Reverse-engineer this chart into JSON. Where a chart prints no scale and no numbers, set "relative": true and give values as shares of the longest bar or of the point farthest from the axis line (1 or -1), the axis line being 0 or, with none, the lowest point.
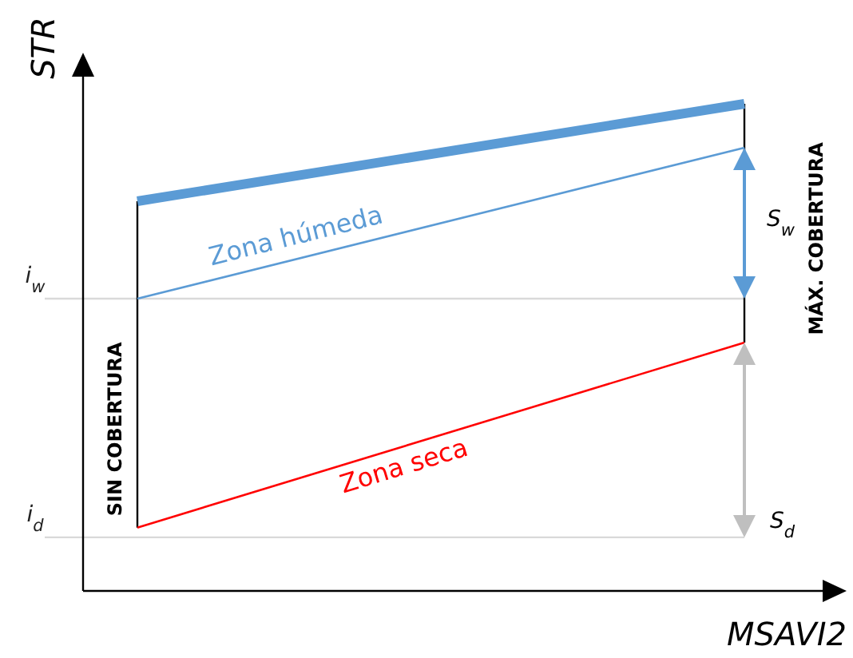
{
  "chart_data": {
    "type": "line",
    "relative": true,
    "xlabel": "MSAVI2",
    "ylabel": "STR",
    "categories": [
      null,
      null
    ],
    "series": [
      {
        "color": "#5b9bd5",
        "values": [
          0.8,
          1
        ]
      },
      {
        "name": "Zona húmeda",
        "color": "#5b9bd5",
        "values": [
          0.6,
          0.91
        ]
      },
      {
        "name": "Zona seca",
        "color": "#ff0000",
        "values": [
          0.13,
          0.51
        ]
      }
    ],
    "ref_lines": [
      {
        "axis": "y",
        "value": 0.6,
        "label": "i$_{w}$",
        "color": "#d9d9d9"
      },
      {
        "axis": "y",
        "value": 0.11,
        "label": "i$_{d}$",
        "color": "#d9d9d9"
      }
    ],
    "annotations": [
      "SIN COBERTURA",
      "MÁX. COBERTURA",
      "S$_{w}$",
      "S$_{d}$"
    ],
    "marker": "none",
    "line_style": "solid"
  }
}
